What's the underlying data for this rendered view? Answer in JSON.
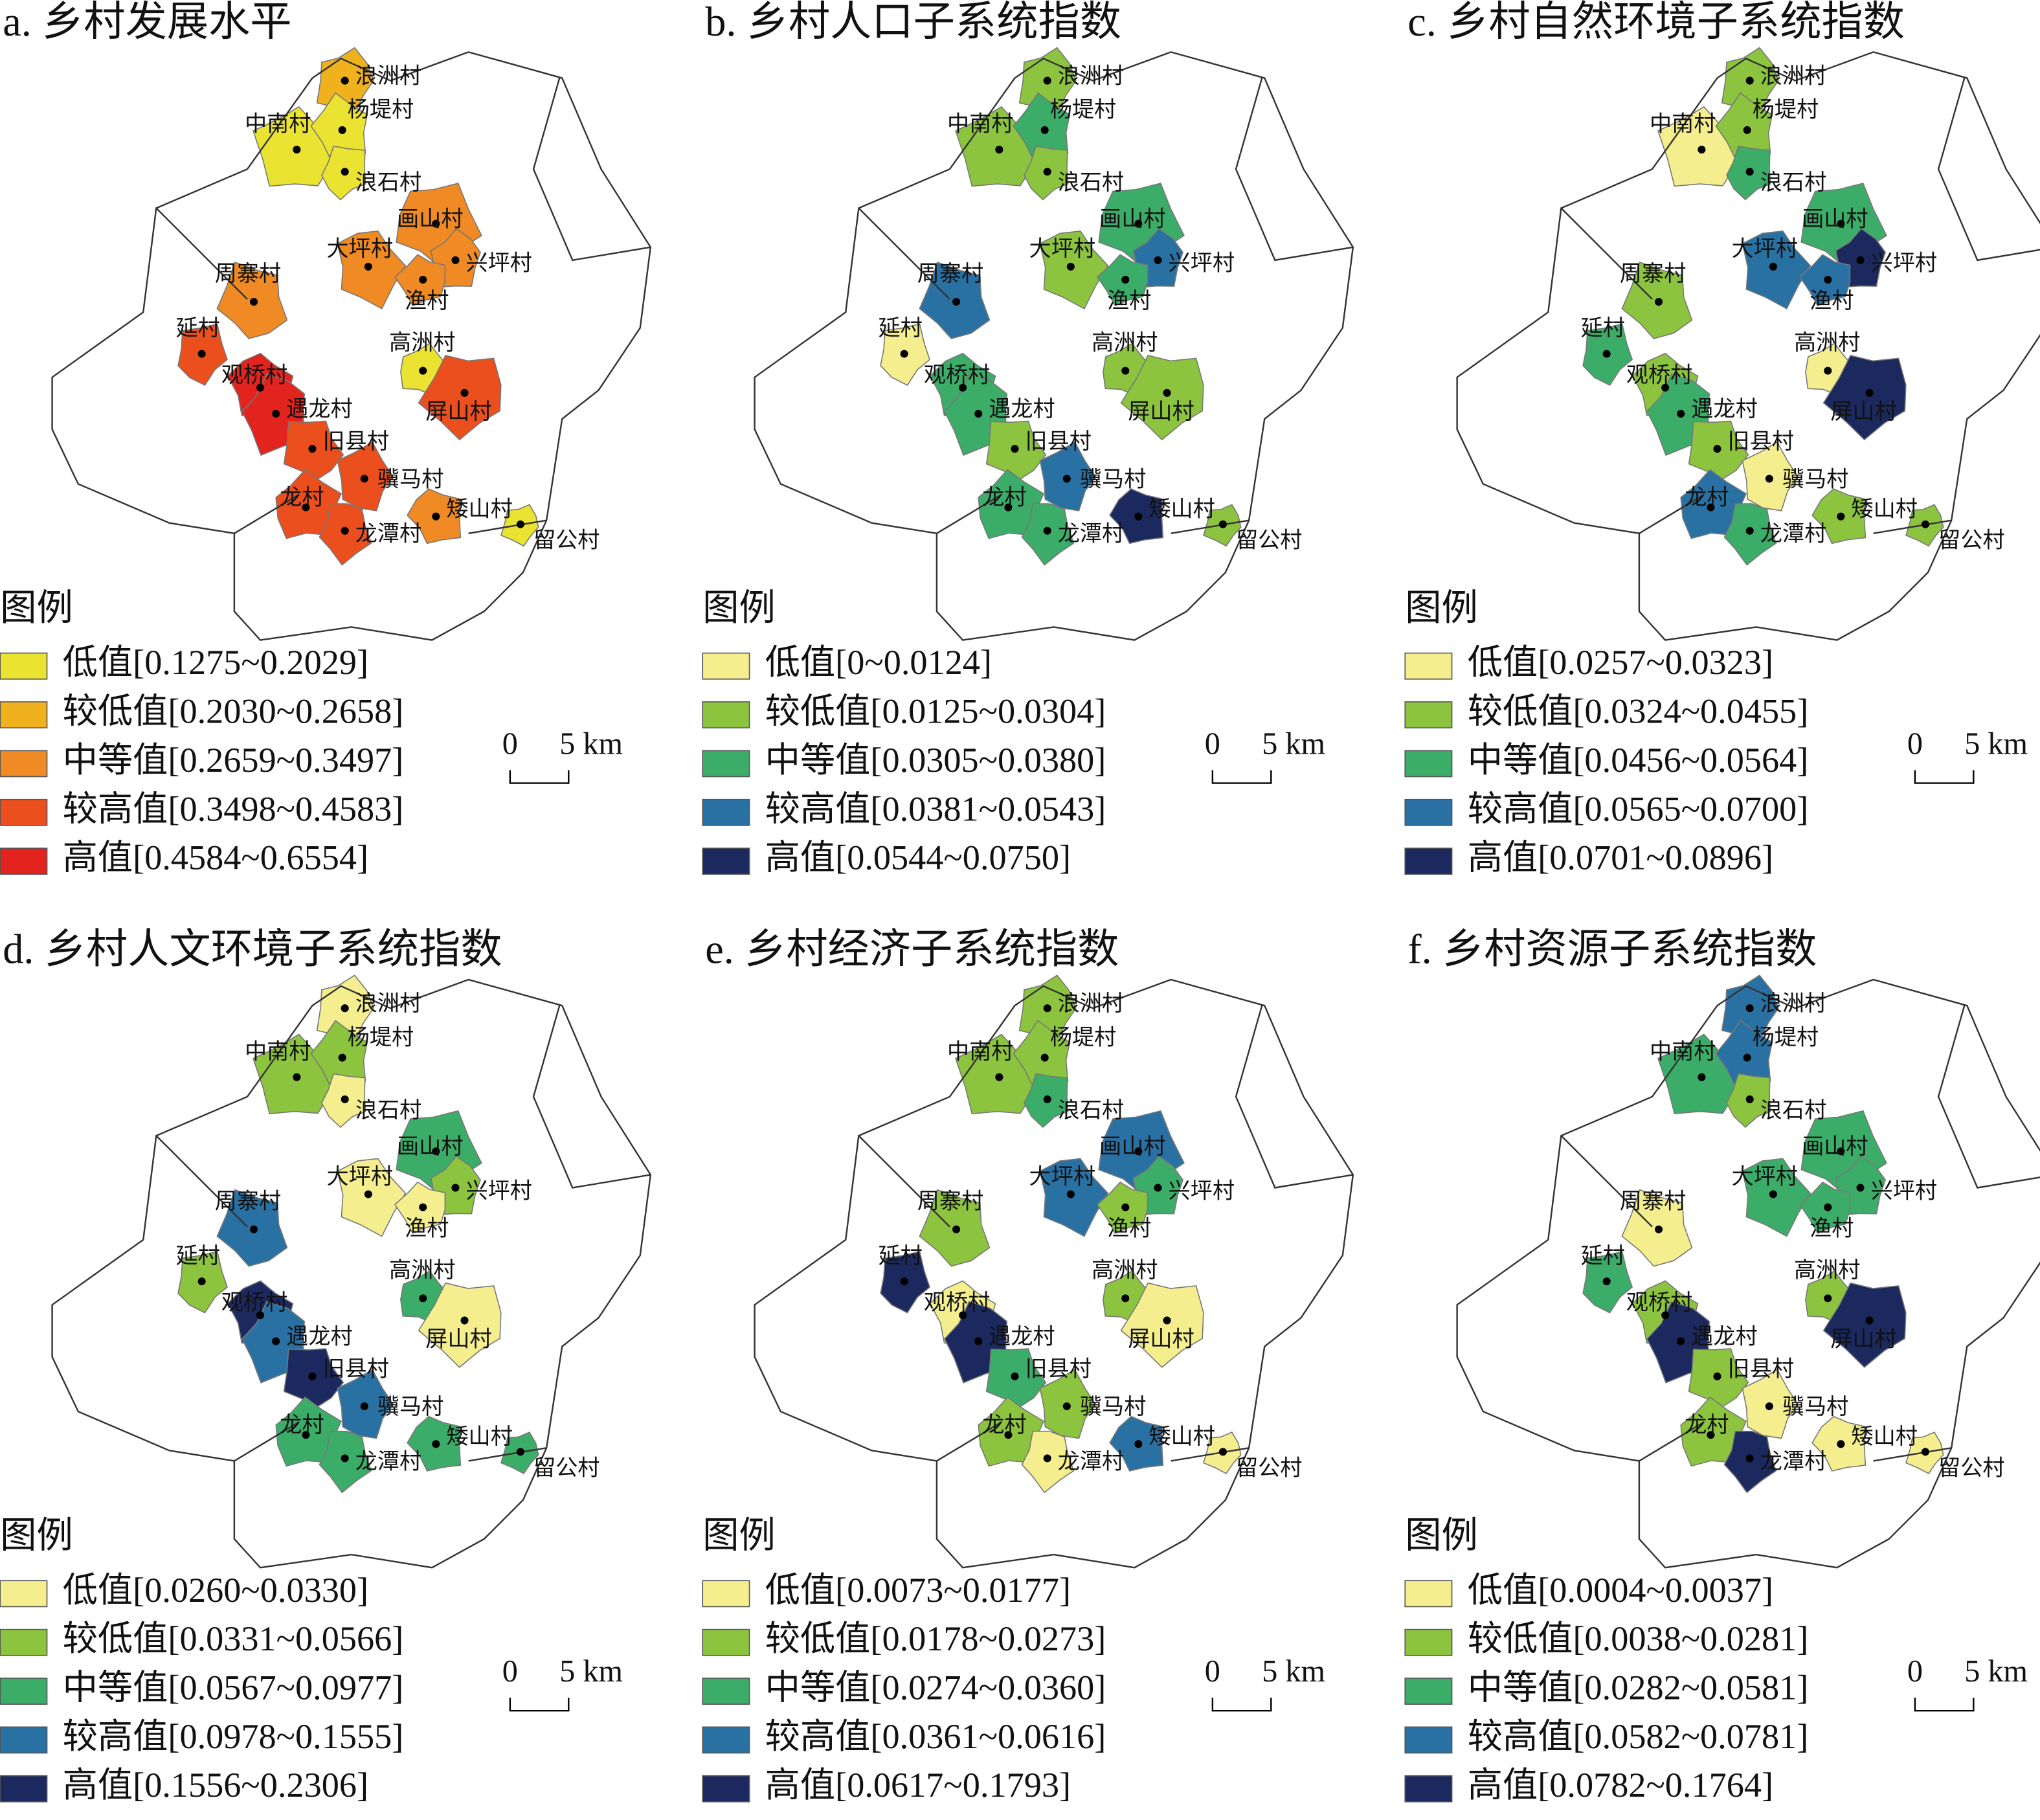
{
  "villages": [
    "浪洲村",
    "中南村",
    "杨堤村",
    "浪石村",
    "画山村",
    "大坪村",
    "兴坪村",
    "渔村",
    "周寨村",
    "延村",
    "高洲村",
    "观桥村",
    "遇龙村",
    "屏山村",
    "旧县村",
    "骥马村",
    "龙村",
    "矮山村",
    "龙潭村",
    "留公村"
  ],
  "panels": [
    {
      "title": "a. 乡村发展水平",
      "legend_title": "图例",
      "scale": [
        "0",
        "5 km"
      ],
      "legend": [
        {
          "label": "低值[0.1275~0.2029]",
          "color": "#ebe331"
        },
        {
          "label": "较低值[0.2030~0.2658]",
          "color": "#f0b11f"
        },
        {
          "label": "中等值[0.2659~0.3497]",
          "color": "#ef8a24"
        },
        {
          "label": "较高值[0.3498~0.4583]",
          "color": "#ea4f1d"
        },
        {
          "label": "高值[0.4584~0.6554]",
          "color": "#e3231e"
        }
      ],
      "village_class": [
        1,
        0,
        0,
        0,
        2,
        2,
        2,
        2,
        2,
        3,
        0,
        4,
        4,
        3,
        3,
        3,
        3,
        2,
        3,
        0
      ]
    },
    {
      "title": "b. 乡村人口子系统指数",
      "legend_title": "图例",
      "scale": [
        "0",
        "5 km"
      ],
      "legend": [
        {
          "label": "低值[0~0.0124]",
          "color": "#f4ee8e"
        },
        {
          "label": "较低值[0.0125~0.0304]",
          "color": "#8cc43f"
        },
        {
          "label": "中等值[0.0305~0.0380]",
          "color": "#3cad69"
        },
        {
          "label": "较高值[0.0381~0.0543]",
          "color": "#2a71a3"
        },
        {
          "label": "高值[0.0544~0.0750]",
          "color": "#1b295e"
        }
      ],
      "village_class": [
        1,
        1,
        2,
        1,
        2,
        1,
        3,
        2,
        3,
        0,
        1,
        2,
        2,
        1,
        1,
        3,
        2,
        4,
        2,
        1
      ]
    },
    {
      "title": "c. 乡村自然环境子系统指数",
      "legend_title": "图例",
      "scale": [
        "0",
        "5 km"
      ],
      "legend": [
        {
          "label": "低值[0.0257~0.0323]",
          "color": "#f4ee8e"
        },
        {
          "label": "较低值[0.0324~0.0455]",
          "color": "#8cc43f"
        },
        {
          "label": "中等值[0.0456~0.0564]",
          "color": "#3cad69"
        },
        {
          "label": "较高值[0.0565~0.0700]",
          "color": "#2a71a3"
        },
        {
          "label": "高值[0.0701~0.0896]",
          "color": "#1b295e"
        }
      ],
      "village_class": [
        1,
        0,
        1,
        2,
        2,
        3,
        4,
        3,
        1,
        2,
        0,
        1,
        2,
        4,
        1,
        0,
        3,
        1,
        2,
        1
      ]
    },
    {
      "title": "d. 乡村人文环境子系统指数",
      "legend_title": "图例",
      "scale": [
        "0",
        "5 km"
      ],
      "legend": [
        {
          "label": "低值[0.0260~0.0330]",
          "color": "#f4ee8e"
        },
        {
          "label": "较低值[0.0331~0.0566]",
          "color": "#8cc43f"
        },
        {
          "label": "中等值[0.0567~0.0977]",
          "color": "#3cad69"
        },
        {
          "label": "较高值[0.0978~0.1555]",
          "color": "#2a71a3"
        },
        {
          "label": "高值[0.1556~0.2306]",
          "color": "#1b295e"
        }
      ],
      "village_class": [
        0,
        1,
        1,
        0,
        2,
        0,
        1,
        0,
        3,
        1,
        2,
        4,
        3,
        0,
        4,
        3,
        2,
        2,
        2,
        2
      ]
    },
    {
      "title": "e. 乡村经济子系统指数",
      "legend_title": "图例",
      "scale": [
        "0",
        "5 km"
      ],
      "legend": [
        {
          "label": "低值[0.0073~0.0177]",
          "color": "#f4ee8e"
        },
        {
          "label": "较低值[0.0178~0.0273]",
          "color": "#8cc43f"
        },
        {
          "label": "中等值[0.0274~0.0360]",
          "color": "#3cad69"
        },
        {
          "label": "较高值[0.0361~0.0616]",
          "color": "#2a71a3"
        },
        {
          "label": "高值[0.0617~0.1793]",
          "color": "#1b295e"
        }
      ],
      "village_class": [
        1,
        1,
        1,
        2,
        3,
        3,
        2,
        1,
        1,
        4,
        1,
        0,
        4,
        0,
        2,
        1,
        1,
        3,
        0,
        0
      ]
    },
    {
      "title": "f. 乡村资源子系统指数",
      "legend_title": "图例",
      "scale": [
        "0",
        "5 km"
      ],
      "legend": [
        {
          "label": "低值[0.0004~0.0037]",
          "color": "#f4ee8e"
        },
        {
          "label": "较低值[0.0038~0.0281]",
          "color": "#8cc43f"
        },
        {
          "label": "中等值[0.0282~0.0581]",
          "color": "#3cad69"
        },
        {
          "label": "较高值[0.0582~0.0781]",
          "color": "#2a71a3"
        },
        {
          "label": "高值[0.0782~0.1764]",
          "color": "#1b295e"
        }
      ],
      "village_class": [
        3,
        2,
        3,
        1,
        2,
        2,
        2,
        2,
        0,
        2,
        1,
        1,
        4,
        4,
        1,
        0,
        1,
        0,
        4,
        0
      ]
    }
  ]
}
